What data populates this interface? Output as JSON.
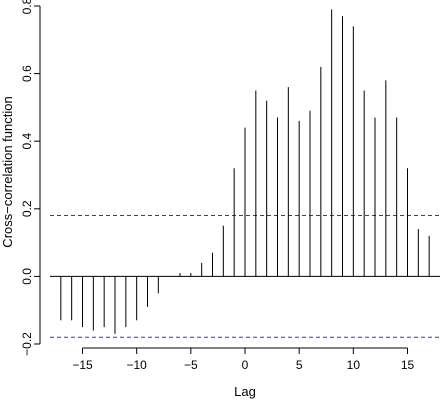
{
  "chart_data": {
    "type": "bar",
    "subtype": "correlogram",
    "title": "",
    "xlabel": "Lag",
    "ylabel": "Cross−correlation function",
    "x": [
      -17,
      -16,
      -15,
      -14,
      -13,
      -12,
      -11,
      -10,
      -9,
      -8,
      -7,
      -6,
      -5,
      -4,
      -3,
      -2,
      -1,
      0,
      1,
      2,
      3,
      4,
      5,
      6,
      7,
      8,
      9,
      10,
      11,
      12,
      13,
      14,
      15,
      16,
      17
    ],
    "values": [
      -0.13,
      -0.13,
      -0.15,
      -0.16,
      -0.15,
      -0.17,
      -0.15,
      -0.13,
      -0.09,
      -0.05,
      0.0,
      0.01,
      0.01,
      0.04,
      0.07,
      0.15,
      0.32,
      0.44,
      0.55,
      0.52,
      0.47,
      0.56,
      0.46,
      0.49,
      0.62,
      0.79,
      0.77,
      0.74,
      0.55,
      0.47,
      0.58,
      0.47,
      0.32,
      0.14,
      0.12
    ],
    "confidence_bound": 0.18,
    "xlim": [
      -18,
      18
    ],
    "ylim": [
      -0.2,
      0.8
    ],
    "xticks": [
      -15,
      -10,
      -5,
      0,
      5,
      10,
      15
    ],
    "xtick_labels": [
      "−15",
      "−10",
      "−5",
      "0",
      "5",
      "10",
      "15"
    ],
    "yticks": [
      -0.2,
      0.0,
      0.2,
      0.4,
      0.6,
      0.8
    ],
    "ytick_labels": [
      "−0.2",
      "0.0",
      "0.2",
      "0.4",
      "0.6",
      "0.8"
    ],
    "grid": false,
    "legend": "none",
    "colors": {
      "bars": "#000000",
      "zero_line": "#000000",
      "confidence_lines": "#3333cc"
    }
  }
}
